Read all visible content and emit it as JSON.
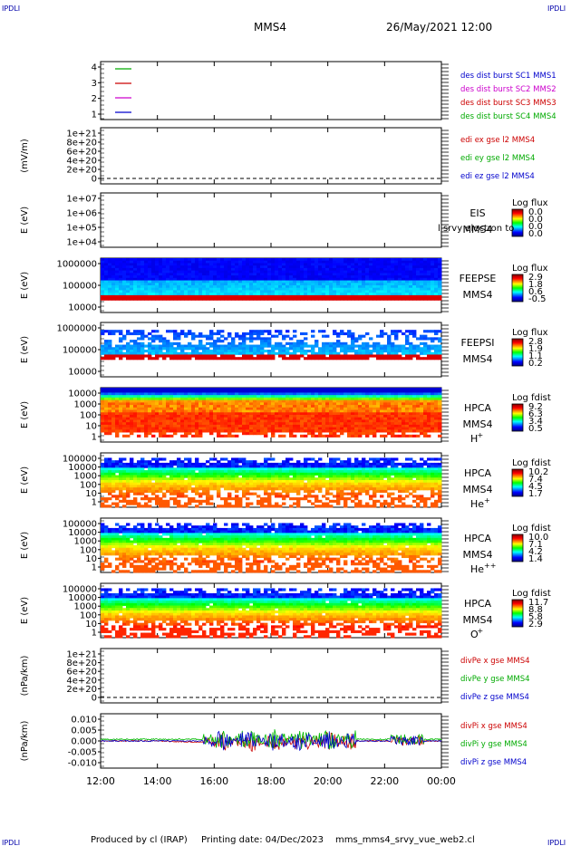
{
  "header": {
    "corner_left_top": "IPDLI",
    "corner_right_top": "IPDLI",
    "corner_left_bottom": "IPDLI",
    "corner_right_bottom": "IPDLI",
    "spacecraft": "MMS4",
    "datetime": "26/May/2021 12:00"
  },
  "footer": {
    "produced_by": "Produced by cl (IRAP)",
    "printing_date": "Printing date: 04/Dec/2023",
    "script_name": "mms_mms4_srvy_vue_web2.cl"
  },
  "chart_data": [
    {
      "type": "line",
      "panel": "spacecraft-configuration",
      "ylabel": "",
      "yticks": [
        "4",
        "3",
        "2",
        "1"
      ],
      "series": [
        {
          "name": "des dist burst SC1 MMS1",
          "color": "#0000cc"
        },
        {
          "name": "des dist burst SC2 MMS2",
          "color": "#cc00cc"
        },
        {
          "name": "des dist burst SC3 MMS3",
          "color": "#cc0000"
        },
        {
          "name": "des dist burst SC4 MMS4",
          "color": "#00aa00"
        }
      ],
      "legend_swatches": [
        "#00aa00",
        "#cc0000",
        "#cc00cc",
        "#0000cc"
      ]
    },
    {
      "type": "line",
      "panel": "edi-electric-field",
      "ylabel": "(mV/m)",
      "yticks": [
        "1e+21",
        "8e+20",
        "6e+20",
        "4e+20",
        "2e+20",
        "0"
      ],
      "series": [
        {
          "name": "edi ex gse l2 MMS4",
          "color": "#cc0000"
        },
        {
          "name": "edi ey gse l2 MMS4",
          "color": "#00aa00"
        },
        {
          "name": "edi ez gse l2 MMS4",
          "color": "#0000cc"
        }
      ]
    },
    {
      "type": "heatmap",
      "panel": "eis",
      "ylabel": "E (eV)",
      "yticks": [
        "1e+07",
        "1e+06",
        "1e+05",
        "1e+04"
      ],
      "labels": [
        "EIS",
        "MMS4"
      ],
      "overlay_text": "l srvy electron to",
      "colorbar": {
        "title": "Log flux",
        "ticks": [
          "0.0",
          "0.0",
          "0.0",
          "0.0"
        ]
      }
    },
    {
      "type": "heatmap",
      "panel": "feeps-electrons",
      "ylabel": "E (eV)",
      "yticks": [
        "1000000",
        "100000",
        "10000"
      ],
      "labels": [
        "FEEPSE",
        "MMS4"
      ],
      "colorbar": {
        "title": "Log flux",
        "ticks": [
          "2.9",
          "1.8",
          "0.6",
          "-0.5"
        ]
      }
    },
    {
      "type": "heatmap",
      "panel": "feeps-ions",
      "ylabel": "E (eV)",
      "yticks": [
        "1000000",
        "100000",
        "10000"
      ],
      "labels": [
        "FEEPSI",
        "MMS4"
      ],
      "colorbar": {
        "title": "Log flux",
        "ticks": [
          "2.8",
          "1.9",
          "1.1",
          "0.2"
        ]
      }
    },
    {
      "type": "heatmap",
      "panel": "hpca-h",
      "ylabel": "E (eV)",
      "yticks": [
        "10000",
        "1000",
        "100",
        "10",
        "1"
      ],
      "labels": [
        "HPCA",
        "MMS4"
      ],
      "species": {
        "base": "H",
        "sup": "+"
      },
      "colorbar": {
        "title": "Log fdist",
        "ticks": [
          "9.2",
          "6.3",
          "3.4",
          "0.5"
        ]
      }
    },
    {
      "type": "heatmap",
      "panel": "hpca-he",
      "ylabel": "E (eV)",
      "yticks": [
        "100000",
        "10000",
        "1000",
        "100",
        "10",
        "1"
      ],
      "labels": [
        "HPCA",
        "MMS4"
      ],
      "species": {
        "base": "He",
        "sup": "+"
      },
      "colorbar": {
        "title": "Log fdist",
        "ticks": [
          "10.2",
          "7.4",
          "4.5",
          "1.7"
        ]
      }
    },
    {
      "type": "heatmap",
      "panel": "hpca-he2",
      "ylabel": "E (eV)",
      "yticks": [
        "100000",
        "10000",
        "1000",
        "100",
        "10",
        "1"
      ],
      "labels": [
        "HPCA",
        "MMS4"
      ],
      "species": {
        "base": "He",
        "sup": "++"
      },
      "colorbar": {
        "title": "Log fdist",
        "ticks": [
          "10.0",
          "7.1",
          "4.2",
          "1.4"
        ]
      }
    },
    {
      "type": "heatmap",
      "panel": "hpca-o",
      "ylabel": "E (eV)",
      "yticks": [
        "100000",
        "10000",
        "1000",
        "100",
        "10",
        "1"
      ],
      "labels": [
        "HPCA",
        "MMS4"
      ],
      "species": {
        "base": "O",
        "sup": "+"
      },
      "colorbar": {
        "title": "Log fdist",
        "ticks": [
          "11.7",
          "8.8",
          "5.8",
          "2.9"
        ]
      }
    },
    {
      "type": "line",
      "panel": "divpe",
      "ylabel": "(nPa/km)",
      "yticks": [
        "1e+21",
        "8e+20",
        "6e+20",
        "4e+20",
        "2e+20",
        "0"
      ],
      "series": [
        {
          "name": "divPe x gse MMS4",
          "color": "#cc0000"
        },
        {
          "name": "divPe y gse MMS4",
          "color": "#00aa00"
        },
        {
          "name": "divPe z gse MMS4",
          "color": "#0000cc"
        }
      ]
    },
    {
      "type": "line",
      "panel": "divpi",
      "ylabel": "(nPa/km)",
      "yticks": [
        "0.010",
        "0.005",
        "0.000",
        "-0.005",
        "-0.010"
      ],
      "ylim": [
        -0.013,
        0.013
      ],
      "series": [
        {
          "name": "divPi x gse MMS4",
          "color": "#cc0000"
        },
        {
          "name": "divPi y gse MMS4",
          "color": "#00aa00"
        },
        {
          "name": "divPi z gse MMS4",
          "color": "#0000cc"
        }
      ]
    }
  ],
  "time_axis": [
    "12:00",
    "14:00",
    "16:00",
    "18:00",
    "20:00",
    "22:00",
    "00:00"
  ]
}
